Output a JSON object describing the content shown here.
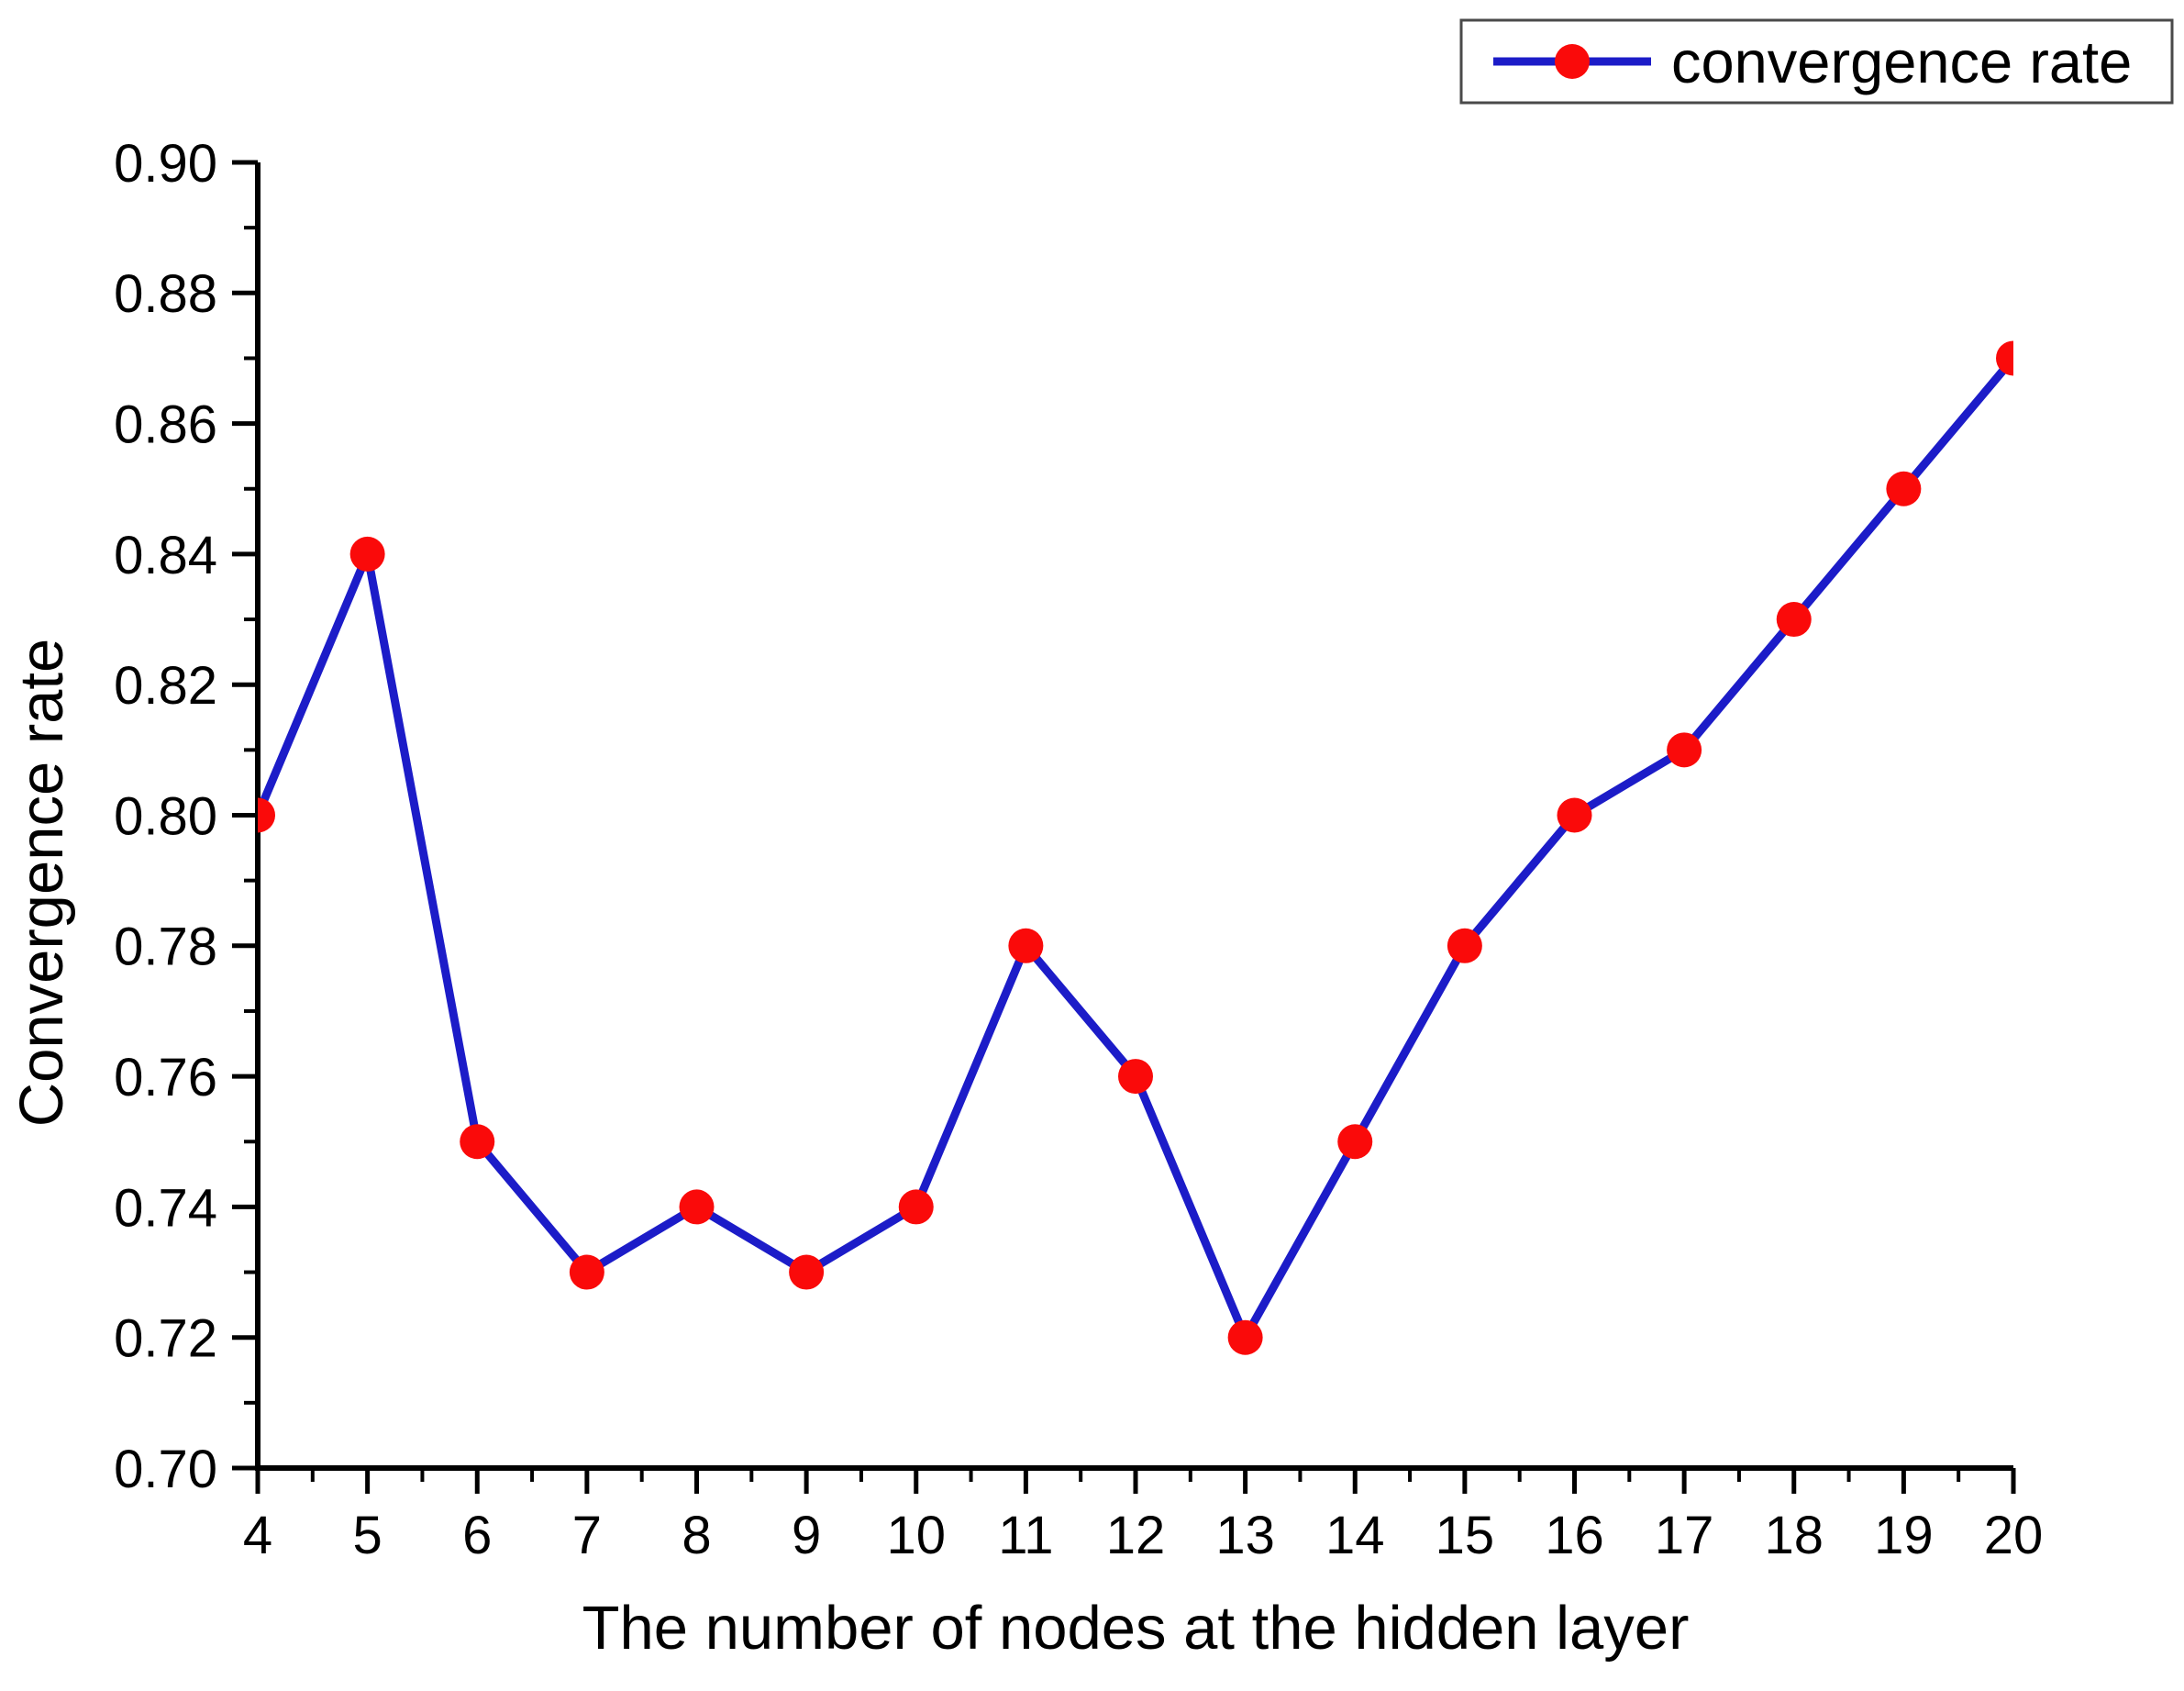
{
  "chart_data": {
    "type": "line",
    "title": "",
    "xlabel": "The number of nodes at the hidden layer",
    "ylabel": "Convergence rate",
    "x": [
      4,
      5,
      6,
      7,
      8,
      9,
      10,
      11,
      12,
      13,
      14,
      15,
      16,
      17,
      18,
      19,
      20
    ],
    "series": [
      {
        "name": "convergence rate",
        "values": [
          0.8,
          0.84,
          0.75,
          0.73,
          0.74,
          0.73,
          0.74,
          0.78,
          0.76,
          0.72,
          0.75,
          0.78,
          0.8,
          0.81,
          0.83,
          0.85,
          0.87
        ]
      }
    ],
    "xlim": [
      4,
      20
    ],
    "ylim": [
      0.7,
      0.9
    ],
    "x_tick_labels": [
      "4",
      "5",
      "6",
      "7",
      "8",
      "9",
      "10",
      "11",
      "12",
      "13",
      "14",
      "15",
      "16",
      "17",
      "18",
      "19",
      "20"
    ],
    "y_tick_labels": [
      "0.90",
      "0.88",
      "0.86",
      "0.84",
      "0.82",
      "0.80",
      "0.78",
      "0.76",
      "0.74",
      "0.72",
      "0.70"
    ],
    "x_minor_step": 0.5,
    "y_minor_step": 0.01,
    "grid": false,
    "legend": {
      "position": "top-right",
      "entries": [
        "convergence rate"
      ]
    },
    "colors": {
      "line": "#1C1CC8",
      "marker": "#FA0A0A",
      "axis": "#000000",
      "legend_border": "#4A4A4A",
      "legend_background": "#FFFFFF"
    },
    "marker": "circle"
  }
}
